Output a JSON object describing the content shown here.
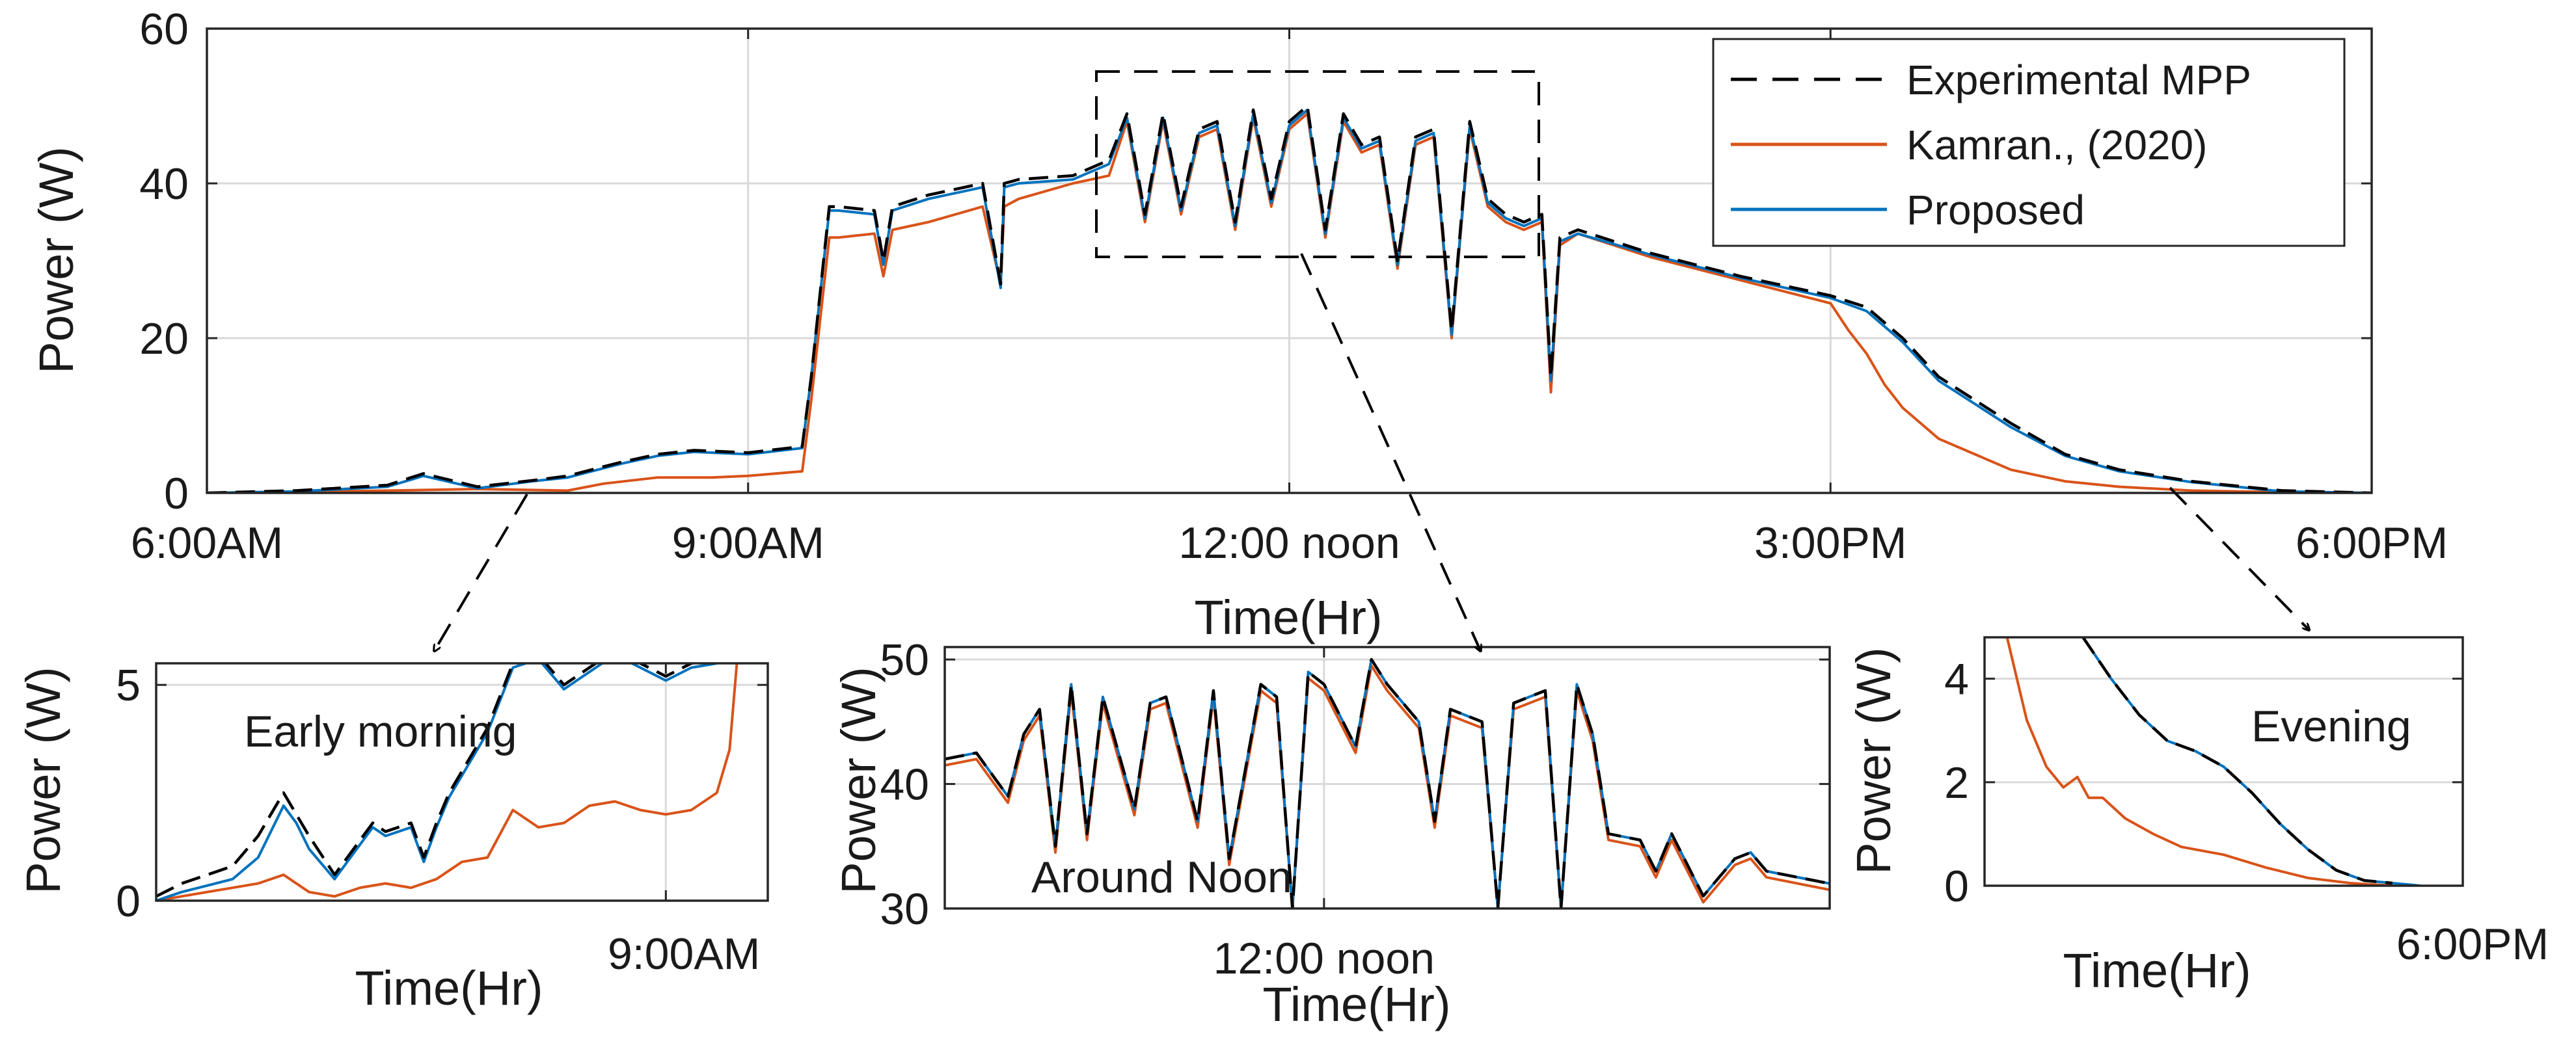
{
  "colors": {
    "mpp": "#000000",
    "kamran": "#d95319",
    "proposed": "#0072bd",
    "grid": "#d9d9d9",
    "axis": "#262626"
  },
  "legend": {
    "items": [
      "Experimental MPP",
      "Kamran., (2020)",
      "Proposed"
    ]
  },
  "chart_data": [
    {
      "id": "main",
      "type": "line",
      "title": "",
      "xlabel": "Time(Hr)",
      "ylabel": "Power (W)",
      "xlim": [
        6,
        18
      ],
      "ylim": [
        0,
        60
      ],
      "xticks": [
        6,
        9,
        12,
        15,
        18
      ],
      "xtick_labels": [
        "6:00AM",
        "9:00AM",
        "12:00 noon",
        "3:00PM",
        "6:00PM"
      ],
      "yticks": [
        0,
        20,
        40,
        60
      ],
      "ytick_labels": [
        "0",
        "20",
        "40",
        "60"
      ],
      "grid": true,
      "legend_position": "top-right",
      "series": [
        {
          "name": "Experimental MPP",
          "style": "dashed",
          "x": [
            6.0,
            6.5,
            7.0,
            7.2,
            7.5,
            7.8,
            8.0,
            8.3,
            8.5,
            8.7,
            9.0,
            9.3,
            9.35,
            9.45,
            9.5,
            9.7,
            9.75,
            9.8,
            10.0,
            10.3,
            10.4,
            10.42,
            10.5,
            10.8,
            11.0,
            11.1,
            11.2,
            11.3,
            11.4,
            11.5,
            11.6,
            11.7,
            11.8,
            11.9,
            12.0,
            12.1,
            12.2,
            12.3,
            12.4,
            12.5,
            12.6,
            12.7,
            12.8,
            12.9,
            13.0,
            13.1,
            13.2,
            13.3,
            13.4,
            13.45,
            13.5,
            13.6,
            14.0,
            14.5,
            15.0,
            15.2,
            15.4,
            15.6,
            15.8,
            16.0,
            16.3,
            16.6,
            17.0,
            17.5,
            18.0
          ],
          "values": [
            0,
            0.3,
            1,
            2.5,
            0.8,
            1.6,
            2.2,
            4.0,
            5.0,
            5.5,
            5.2,
            6.0,
            15.0,
            37.0,
            37.0,
            36.5,
            30.0,
            37.0,
            38.5,
            40.0,
            27.0,
            40.0,
            40.5,
            41.0,
            43.0,
            49.0,
            36.0,
            49.0,
            37.0,
            47.0,
            48.0,
            35.0,
            49.5,
            38.0,
            48.0,
            50.0,
            34.0,
            49.0,
            45.0,
            46.0,
            30.0,
            46.0,
            47.0,
            21.0,
            48.0,
            38.0,
            36.0,
            35.0,
            36.0,
            15.0,
            33.0,
            34.0,
            31.0,
            28.0,
            25.5,
            24.0,
            20.0,
            15.0,
            12.0,
            9.0,
            5.0,
            3.0,
            1.5,
            0.3,
            0
          ]
        },
        {
          "name": "Kamran., (2020)",
          "style": "solid",
          "x": [
            6.0,
            6.5,
            7.0,
            7.5,
            8.0,
            8.2,
            8.5,
            8.8,
            9.0,
            9.3,
            9.35,
            9.45,
            9.5,
            9.7,
            9.75,
            9.8,
            10.0,
            10.3,
            10.4,
            10.42,
            10.5,
            10.8,
            11.0,
            11.1,
            11.2,
            11.3,
            11.4,
            11.5,
            11.6,
            11.7,
            11.8,
            11.9,
            12.0,
            12.1,
            12.2,
            12.3,
            12.4,
            12.5,
            12.6,
            12.7,
            12.8,
            12.9,
            13.0,
            13.1,
            13.2,
            13.3,
            13.4,
            13.45,
            13.5,
            13.6,
            14.0,
            14.5,
            15.0,
            15.1,
            15.2,
            15.3,
            15.4,
            15.5,
            15.6,
            15.8,
            16.0,
            16.3,
            16.6,
            17.0,
            17.5,
            18.0
          ],
          "values": [
            0,
            0.1,
            0.3,
            0.5,
            0.3,
            1.2,
            2.0,
            2.0,
            2.2,
            2.8,
            12.0,
            33.0,
            33.0,
            33.5,
            28.0,
            34.0,
            35.0,
            37.0,
            27.0,
            37.0,
            38.0,
            40.0,
            41.0,
            48.0,
            35.0,
            48.0,
            36.0,
            46.0,
            47.0,
            34.0,
            48.5,
            37.0,
            47.0,
            49.0,
            33.0,
            48.0,
            44.0,
            45.0,
            29.0,
            45.0,
            46.0,
            20.0,
            47.0,
            37.0,
            35.0,
            34.0,
            35.0,
            13.0,
            32.0,
            33.5,
            30.5,
            27.5,
            24.5,
            21.0,
            18.0,
            14.0,
            11.0,
            9.0,
            7.0,
            5.0,
            3.0,
            1.5,
            0.8,
            0.3,
            0.1,
            0
          ]
        },
        {
          "name": "Proposed",
          "style": "solid",
          "x": [
            6.0,
            6.5,
            7.0,
            7.2,
            7.5,
            7.8,
            8.0,
            8.3,
            8.5,
            8.7,
            9.0,
            9.3,
            9.35,
            9.45,
            9.5,
            9.7,
            9.75,
            9.8,
            10.0,
            10.3,
            10.4,
            10.42,
            10.5,
            10.8,
            11.0,
            11.1,
            11.2,
            11.3,
            11.4,
            11.5,
            11.6,
            11.7,
            11.8,
            11.9,
            12.0,
            12.1,
            12.2,
            12.3,
            12.4,
            12.5,
            12.6,
            12.7,
            12.8,
            12.9,
            13.0,
            13.1,
            13.2,
            13.3,
            13.4,
            13.45,
            13.5,
            13.6,
            14.0,
            14.5,
            15.0,
            15.2,
            15.4,
            15.6,
            15.8,
            16.0,
            16.3,
            16.6,
            17.0,
            17.5,
            18.0
          ],
          "values": [
            0,
            0.2,
            0.8,
            2.2,
            0.6,
            1.5,
            2.0,
            3.8,
            4.8,
            5.3,
            5.0,
            5.8,
            15.0,
            36.5,
            36.5,
            36.0,
            29.5,
            36.5,
            38.0,
            39.5,
            26.5,
            39.5,
            40.0,
            40.5,
            42.5,
            48.5,
            35.5,
            48.5,
            36.5,
            46.5,
            47.5,
            34.5,
            49.0,
            37.5,
            47.5,
            49.5,
            33.5,
            48.5,
            44.5,
            45.5,
            29.5,
            45.5,
            46.5,
            20.5,
            47.5,
            37.5,
            35.5,
            34.5,
            35.5,
            14.5,
            32.5,
            33.5,
            30.8,
            27.8,
            25.2,
            23.5,
            19.5,
            14.5,
            11.5,
            8.5,
            4.8,
            2.8,
            1.4,
            0.2,
            0
          ]
        }
      ]
    },
    {
      "id": "inset-morning",
      "type": "line",
      "annotation": "Early morning",
      "xlabel": "Time(Hr)",
      "ylabel": "Power (W)",
      "xlim": [
        7.0,
        9.4
      ],
      "ylim": [
        0,
        5.5
      ],
      "xticks": [
        9.0
      ],
      "xtick_labels": [
        "9:00AM"
      ],
      "yticks": [
        0,
        5
      ],
      "ytick_labels": [
        "0",
        "5"
      ],
      "grid": true,
      "series": [
        {
          "name": "Experimental MPP",
          "style": "dashed",
          "x": [
            7.0,
            7.1,
            7.2,
            7.3,
            7.4,
            7.5,
            7.55,
            7.6,
            7.7,
            7.8,
            7.85,
            7.9,
            8.0,
            8.05,
            8.1,
            8.15,
            8.2,
            8.3,
            8.4,
            8.5,
            8.6,
            8.7,
            8.8,
            9.0,
            9.1,
            9.2
          ],
          "values": [
            0.1,
            0.4,
            0.6,
            0.8,
            1.5,
            2.5,
            2.0,
            1.5,
            0.6,
            1.4,
            1.8,
            1.6,
            1.8,
            1.0,
            1.8,
            2.5,
            3.0,
            4.0,
            5.5,
            5.7,
            5.0,
            5.4,
            5.8,
            5.2,
            5.5,
            5.6
          ]
        },
        {
          "name": "Kamran., (2020)",
          "style": "solid",
          "x": [
            7.0,
            7.2,
            7.4,
            7.5,
            7.6,
            7.7,
            7.8,
            7.9,
            8.0,
            8.1,
            8.2,
            8.3,
            8.4,
            8.5,
            8.6,
            8.7,
            8.8,
            8.9,
            9.0,
            9.1,
            9.2,
            9.25,
            9.28
          ],
          "values": [
            0.0,
            0.2,
            0.4,
            0.6,
            0.2,
            0.1,
            0.3,
            0.4,
            0.3,
            0.5,
            0.9,
            1.0,
            2.1,
            1.7,
            1.8,
            2.2,
            2.3,
            2.1,
            2.0,
            2.1,
            2.5,
            3.5,
            5.6
          ]
        },
        {
          "name": "Proposed",
          "style": "solid",
          "x": [
            7.0,
            7.1,
            7.2,
            7.3,
            7.4,
            7.5,
            7.55,
            7.6,
            7.7,
            7.8,
            7.85,
            7.9,
            8.0,
            8.05,
            8.1,
            8.15,
            8.2,
            8.3,
            8.4,
            8.5,
            8.6,
            8.7,
            8.8,
            9.0,
            9.1,
            9.2
          ],
          "values": [
            0.0,
            0.2,
            0.35,
            0.5,
            1.0,
            2.2,
            1.8,
            1.2,
            0.5,
            1.3,
            1.7,
            1.5,
            1.7,
            0.9,
            1.7,
            2.4,
            2.9,
            3.9,
            5.4,
            5.6,
            4.9,
            5.3,
            5.7,
            5.1,
            5.4,
            5.5
          ]
        }
      ]
    },
    {
      "id": "inset-noon",
      "type": "line",
      "annotation": "Around Noon",
      "xlabel": "Time(Hr)",
      "ylabel": "Power (W)",
      "xlim": [
        10.8,
        13.6
      ],
      "ylim": [
        30,
        51
      ],
      "xticks": [
        12.0
      ],
      "xtick_labels": [
        "12:00 noon"
      ],
      "yticks": [
        30,
        40,
        50
      ],
      "ytick_labels": [
        "30",
        "40",
        "50"
      ],
      "grid": true,
      "series": [
        {
          "name": "Experimental MPP",
          "style": "dashed",
          "x": [
            10.8,
            10.9,
            11.0,
            11.05,
            11.1,
            11.15,
            11.2,
            11.25,
            11.3,
            11.4,
            11.45,
            11.5,
            11.6,
            11.65,
            11.7,
            11.8,
            11.85,
            11.9,
            11.95,
            12.0,
            12.1,
            12.15,
            12.2,
            12.3,
            12.35,
            12.4,
            12.5,
            12.55,
            12.6,
            12.7,
            12.75,
            12.8,
            12.85,
            12.9,
            13.0,
            13.05,
            13.1,
            13.2,
            13.3,
            13.35,
            13.4,
            13.5,
            13.6
          ],
          "values": [
            42,
            42.5,
            39,
            44,
            46,
            35,
            48,
            36,
            47,
            38,
            46.5,
            47,
            37,
            47.5,
            34,
            48,
            47,
            30,
            49,
            48,
            43,
            50,
            48,
            45,
            37,
            46,
            45,
            30,
            46.5,
            47.5,
            30,
            48,
            44,
            36,
            35.5,
            33,
            36,
            31,
            34,
            34.5,
            33,
            32.5,
            32
          ]
        },
        {
          "name": "Kamran., (2020)",
          "style": "solid",
          "x": [
            10.8,
            10.9,
            11.0,
            11.05,
            11.1,
            11.15,
            11.2,
            11.25,
            11.3,
            11.4,
            11.45,
            11.5,
            11.6,
            11.65,
            11.7,
            11.8,
            11.85,
            11.9,
            11.95,
            12.0,
            12.1,
            12.15,
            12.2,
            12.3,
            12.35,
            12.4,
            12.5,
            12.55,
            12.6,
            12.7,
            12.75,
            12.8,
            12.85,
            12.9,
            13.0,
            13.05,
            13.1,
            13.2,
            13.3,
            13.35,
            13.4,
            13.5,
            13.6
          ],
          "values": [
            41.5,
            42,
            38.5,
            43.5,
            45.5,
            34.5,
            47.5,
            35.5,
            46.5,
            37.5,
            46,
            46.5,
            36.5,
            47,
            33.5,
            47.5,
            46.5,
            30,
            48.5,
            47.5,
            42.5,
            49.5,
            47.5,
            44.5,
            36.5,
            45.5,
            44.5,
            30,
            46,
            47,
            30,
            47.5,
            43.5,
            35.5,
            35,
            32.5,
            35.5,
            30.5,
            33.5,
            34,
            32.5,
            32,
            31.5
          ]
        },
        {
          "name": "Proposed",
          "style": "solid",
          "x": [
            10.8,
            10.9,
            11.0,
            11.05,
            11.1,
            11.15,
            11.2,
            11.25,
            11.3,
            11.4,
            11.45,
            11.5,
            11.6,
            11.65,
            11.7,
            11.8,
            11.85,
            11.9,
            11.95,
            12.0,
            12.1,
            12.15,
            12.2,
            12.3,
            12.35,
            12.4,
            12.5,
            12.55,
            12.6,
            12.7,
            12.75,
            12.8,
            12.85,
            12.9,
            13.0,
            13.05,
            13.1,
            13.2,
            13.3,
            13.35,
            13.4,
            13.5,
            13.6
          ],
          "values": [
            42,
            42.5,
            39,
            44,
            46,
            35,
            48,
            36,
            47,
            38,
            46.5,
            47,
            37,
            47.5,
            34,
            48,
            47,
            30,
            49,
            48,
            43,
            50,
            48,
            45,
            37,
            46,
            45,
            30,
            46.5,
            47.5,
            30,
            48,
            44,
            36,
            35.5,
            33,
            36,
            31,
            34,
            34.5,
            33,
            32.5,
            32
          ]
        }
      ]
    },
    {
      "id": "inset-evening",
      "type": "line",
      "annotation": "Evening",
      "xlabel": "Time(Hr)",
      "ylabel": "Power (W)",
      "xlim": [
        16.3,
        18.0
      ],
      "ylim": [
        0,
        4.8
      ],
      "xticks": [
        18.0
      ],
      "xtick_labels": [
        "6:00PM"
      ],
      "yticks": [
        0,
        2,
        4
      ],
      "ytick_labels": [
        "0",
        "2",
        "4"
      ],
      "grid": true,
      "series": [
        {
          "name": "Experimental MPP",
          "style": "dashed",
          "x": [
            16.65,
            16.75,
            16.85,
            16.95,
            17.05,
            17.15,
            17.25,
            17.35,
            17.45,
            17.55,
            17.65,
            17.75
          ],
          "values": [
            4.8,
            4.0,
            3.3,
            2.8,
            2.6,
            2.3,
            1.8,
            1.2,
            0.7,
            0.3,
            0.1,
            0.05
          ]
        },
        {
          "name": "Kamran., (2020)",
          "style": "solid",
          "x": [
            16.38,
            16.45,
            16.52,
            16.58,
            16.63,
            16.67,
            16.72,
            16.8,
            16.9,
            17.0,
            17.15,
            17.3,
            17.45,
            17.6,
            17.75
          ],
          "values": [
            4.8,
            3.2,
            2.3,
            1.9,
            2.1,
            1.7,
            1.7,
            1.3,
            1.0,
            0.75,
            0.6,
            0.35,
            0.15,
            0.05,
            0.0
          ]
        },
        {
          "name": "Proposed",
          "style": "solid",
          "x": [
            16.65,
            16.75,
            16.85,
            16.95,
            17.05,
            17.15,
            17.25,
            17.35,
            17.45,
            17.55,
            17.65,
            17.75,
            17.85
          ],
          "values": [
            4.8,
            4.0,
            3.3,
            2.8,
            2.6,
            2.3,
            1.8,
            1.2,
            0.7,
            0.3,
            0.1,
            0.05,
            0.0
          ]
        }
      ]
    }
  ]
}
